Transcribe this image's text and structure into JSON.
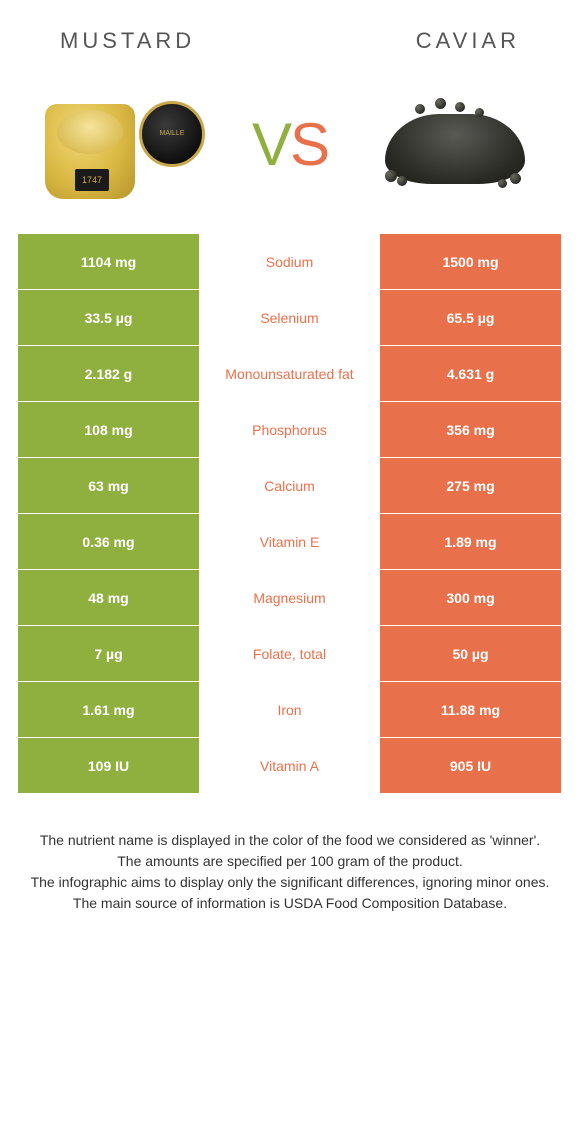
{
  "header": {
    "left_title": "MUSTARD",
    "right_title": "CAVIAR"
  },
  "vs": {
    "v": "V",
    "s": "S"
  },
  "colors": {
    "left_bg": "#8fb03e",
    "right_bg": "#e8714b",
    "left_text": "#8fb03e",
    "right_text": "#e8714b",
    "cell_text": "#ffffff"
  },
  "mustard_label": "1747",
  "table": {
    "rows": [
      {
        "left": "1104 mg",
        "mid": "Sodium",
        "right": "1500 mg",
        "winner": "right"
      },
      {
        "left": "33.5 µg",
        "mid": "Selenium",
        "right": "65.5 µg",
        "winner": "right"
      },
      {
        "left": "2.182 g",
        "mid": "Monounsaturated fat",
        "right": "4.631 g",
        "winner": "right"
      },
      {
        "left": "108 mg",
        "mid": "Phosphorus",
        "right": "356 mg",
        "winner": "right"
      },
      {
        "left": "63 mg",
        "mid": "Calcium",
        "right": "275 mg",
        "winner": "right"
      },
      {
        "left": "0.36 mg",
        "mid": "Vitamin E",
        "right": "1.89 mg",
        "winner": "right"
      },
      {
        "left": "48 mg",
        "mid": "Magnesium",
        "right": "300 mg",
        "winner": "right"
      },
      {
        "left": "7 µg",
        "mid": "Folate, total",
        "right": "50 µg",
        "winner": "right"
      },
      {
        "left": "1.61 mg",
        "mid": "Iron",
        "right": "11.88 mg",
        "winner": "right"
      },
      {
        "left": "109 IU",
        "mid": "Vitamin A",
        "right": "905 IU",
        "winner": "right"
      }
    ]
  },
  "footer": {
    "line1": "The nutrient name is displayed in the color of the food we considered as 'winner'.",
    "line2": "The amounts are specified per 100 gram of the product.",
    "line3": "The infographic aims to display only the significant differences, ignoring minor ones.",
    "line4": "The main source of information is USDA Food Composition Database."
  }
}
